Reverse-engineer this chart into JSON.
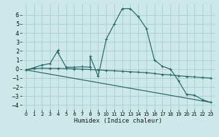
{
  "xlabel": "Humidex (Indice chaleur)",
  "background_color": "#cce8e8",
  "grid_color": "#aacccc",
  "line_color": "#2a6868",
  "xlim": [
    -0.5,
    23.5
  ],
  "ylim": [
    -4.5,
    7.2
  ],
  "yticks": [
    -4,
    -3,
    -2,
    -1,
    0,
    1,
    2,
    3,
    4,
    5,
    6
  ],
  "xticks": [
    0,
    1,
    2,
    3,
    4,
    5,
    6,
    7,
    8,
    9,
    10,
    11,
    12,
    13,
    14,
    15,
    16,
    17,
    18,
    19,
    20,
    21,
    22,
    23
  ],
  "series1_x": [
    0,
    1,
    2,
    3,
    4,
    4,
    5,
    6,
    7,
    8,
    8,
    9,
    10,
    11,
    12,
    13,
    14,
    15,
    16,
    17,
    18,
    19,
    20,
    21,
    22,
    23
  ],
  "series1_y": [
    -0.1,
    0.15,
    0.45,
    0.6,
    2.1,
    1.8,
    0.2,
    0.2,
    0.25,
    0.2,
    1.4,
    -0.8,
    3.3,
    5.0,
    6.7,
    6.7,
    5.8,
    4.5,
    1.0,
    0.3,
    0.0,
    -1.3,
    -2.8,
    -2.9,
    -3.4,
    -3.7
  ],
  "series2_x": [
    0,
    1,
    2,
    3,
    4,
    5,
    6,
    7,
    8,
    9,
    10,
    11,
    12,
    13,
    14,
    15,
    16,
    17,
    18,
    19,
    20,
    21,
    22,
    23
  ],
  "series2_y": [
    -0.1,
    0.05,
    0.1,
    0.08,
    0.08,
    0.05,
    0.02,
    -0.02,
    -0.05,
    -0.1,
    -0.15,
    -0.2,
    -0.25,
    -0.3,
    -0.35,
    -0.4,
    -0.5,
    -0.6,
    -0.65,
    -0.75,
    -0.82,
    -0.88,
    -0.95,
    -1.0
  ],
  "series3_x": [
    0,
    23
  ],
  "series3_y": [
    -0.1,
    -3.7
  ]
}
